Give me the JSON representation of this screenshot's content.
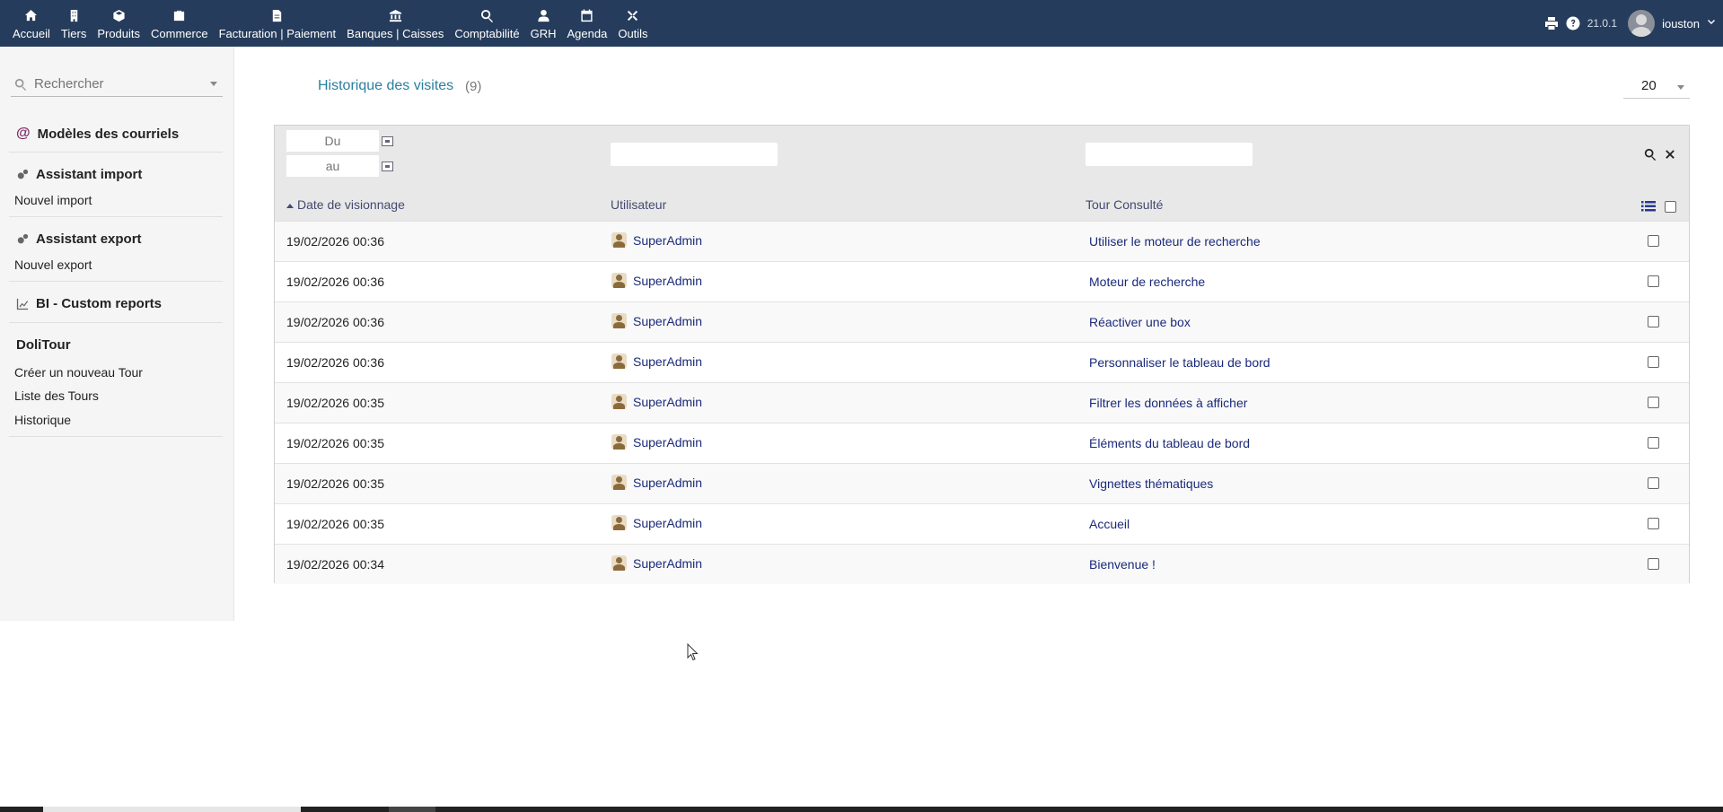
{
  "topnav": {
    "items": [
      {
        "label": "Accueil",
        "icon": "home-icon"
      },
      {
        "label": "Tiers",
        "icon": "building-icon"
      },
      {
        "label": "Produits",
        "icon": "cube-icon"
      },
      {
        "label": "Commerce",
        "icon": "briefcase-icon"
      },
      {
        "label": "Facturation | Paiement",
        "icon": "file-invoice-icon"
      },
      {
        "label": "Banques | Caisses",
        "icon": "bank-icon"
      },
      {
        "label": "Comptabilité",
        "icon": "search-dollar-icon"
      },
      {
        "label": "GRH",
        "icon": "user-tie-icon"
      },
      {
        "label": "Agenda",
        "icon": "calendar-icon"
      },
      {
        "label": "Outils",
        "icon": "tools-icon"
      }
    ],
    "version": "21.0.1",
    "username": "iouston"
  },
  "sidebar": {
    "search_placeholder": "Rechercher",
    "email_models": "Modèles des courriels",
    "import_head": "Assistant import",
    "import_sub": "Nouvel import",
    "export_head": "Assistant export",
    "export_sub": "Nouvel export",
    "bi_head": "BI - Custom reports",
    "dolitour_head": "DoliTour",
    "dolitour_items": [
      "Créer un nouveau Tour",
      "Liste des Tours",
      "Historique"
    ]
  },
  "main": {
    "title": "Historique des visites",
    "count": "(9)",
    "limit": "20",
    "filter": {
      "from_placeholder": "Du",
      "to_placeholder": "au"
    },
    "columns": {
      "date": "Date de visionnage",
      "user": "Utilisateur",
      "tour": "Tour Consulté"
    },
    "rows": [
      {
        "date": "19/02/2026 00:36",
        "user": "SuperAdmin",
        "tour": "Utiliser le moteur de recherche"
      },
      {
        "date": "19/02/2026 00:36",
        "user": "SuperAdmin",
        "tour": "Moteur de recherche"
      },
      {
        "date": "19/02/2026 00:36",
        "user": "SuperAdmin",
        "tour": "Réactiver une box"
      },
      {
        "date": "19/02/2026 00:36",
        "user": "SuperAdmin",
        "tour": "Personnaliser le tableau de bord"
      },
      {
        "date": "19/02/2026 00:35",
        "user": "SuperAdmin",
        "tour": "Filtrer les données à afficher"
      },
      {
        "date": "19/02/2026 00:35",
        "user": "SuperAdmin",
        "tour": "Éléments du tableau de bord"
      },
      {
        "date": "19/02/2026 00:35",
        "user": "SuperAdmin",
        "tour": "Vignettes thématiques"
      },
      {
        "date": "19/02/2026 00:35",
        "user": "SuperAdmin",
        "tour": "Accueil"
      },
      {
        "date": "19/02/2026 00:34",
        "user": "SuperAdmin",
        "tour": "Bienvenue !"
      }
    ]
  },
  "colors": {
    "topbar": "#263c5c",
    "link": "#1a2a7a",
    "title": "#2b7fa0"
  }
}
